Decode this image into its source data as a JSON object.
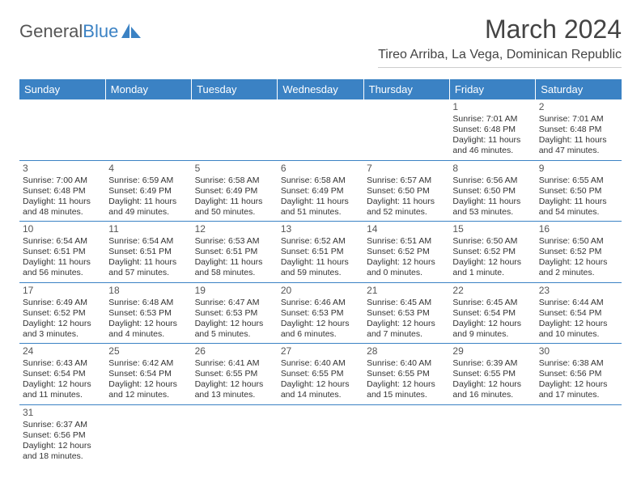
{
  "logo": {
    "text1": "General",
    "text2": "Blue",
    "icon_color": "#3b82c4"
  },
  "title": "March 2024",
  "location": "Tireo Arriba, La Vega, Dominican Republic",
  "header_bg": "#3b82c4",
  "header_fg": "#ffffff",
  "border_color": "#3b82c4",
  "day_headers": [
    "Sunday",
    "Monday",
    "Tuesday",
    "Wednesday",
    "Thursday",
    "Friday",
    "Saturday"
  ],
  "weeks": [
    [
      null,
      null,
      null,
      null,
      null,
      {
        "n": "1",
        "sr": "7:01 AM",
        "ss": "6:48 PM",
        "dl": "11 hours and 46 minutes."
      },
      {
        "n": "2",
        "sr": "7:01 AM",
        "ss": "6:48 PM",
        "dl": "11 hours and 47 minutes."
      }
    ],
    [
      {
        "n": "3",
        "sr": "7:00 AM",
        "ss": "6:48 PM",
        "dl": "11 hours and 48 minutes."
      },
      {
        "n": "4",
        "sr": "6:59 AM",
        "ss": "6:49 PM",
        "dl": "11 hours and 49 minutes."
      },
      {
        "n": "5",
        "sr": "6:58 AM",
        "ss": "6:49 PM",
        "dl": "11 hours and 50 minutes."
      },
      {
        "n": "6",
        "sr": "6:58 AM",
        "ss": "6:49 PM",
        "dl": "11 hours and 51 minutes."
      },
      {
        "n": "7",
        "sr": "6:57 AM",
        "ss": "6:50 PM",
        "dl": "11 hours and 52 minutes."
      },
      {
        "n": "8",
        "sr": "6:56 AM",
        "ss": "6:50 PM",
        "dl": "11 hours and 53 minutes."
      },
      {
        "n": "9",
        "sr": "6:55 AM",
        "ss": "6:50 PM",
        "dl": "11 hours and 54 minutes."
      }
    ],
    [
      {
        "n": "10",
        "sr": "6:54 AM",
        "ss": "6:51 PM",
        "dl": "11 hours and 56 minutes."
      },
      {
        "n": "11",
        "sr": "6:54 AM",
        "ss": "6:51 PM",
        "dl": "11 hours and 57 minutes."
      },
      {
        "n": "12",
        "sr": "6:53 AM",
        "ss": "6:51 PM",
        "dl": "11 hours and 58 minutes."
      },
      {
        "n": "13",
        "sr": "6:52 AM",
        "ss": "6:51 PM",
        "dl": "11 hours and 59 minutes."
      },
      {
        "n": "14",
        "sr": "6:51 AM",
        "ss": "6:52 PM",
        "dl": "12 hours and 0 minutes."
      },
      {
        "n": "15",
        "sr": "6:50 AM",
        "ss": "6:52 PM",
        "dl": "12 hours and 1 minute."
      },
      {
        "n": "16",
        "sr": "6:50 AM",
        "ss": "6:52 PM",
        "dl": "12 hours and 2 minutes."
      }
    ],
    [
      {
        "n": "17",
        "sr": "6:49 AM",
        "ss": "6:52 PM",
        "dl": "12 hours and 3 minutes."
      },
      {
        "n": "18",
        "sr": "6:48 AM",
        "ss": "6:53 PM",
        "dl": "12 hours and 4 minutes."
      },
      {
        "n": "19",
        "sr": "6:47 AM",
        "ss": "6:53 PM",
        "dl": "12 hours and 5 minutes."
      },
      {
        "n": "20",
        "sr": "6:46 AM",
        "ss": "6:53 PM",
        "dl": "12 hours and 6 minutes."
      },
      {
        "n": "21",
        "sr": "6:45 AM",
        "ss": "6:53 PM",
        "dl": "12 hours and 7 minutes."
      },
      {
        "n": "22",
        "sr": "6:45 AM",
        "ss": "6:54 PM",
        "dl": "12 hours and 9 minutes."
      },
      {
        "n": "23",
        "sr": "6:44 AM",
        "ss": "6:54 PM",
        "dl": "12 hours and 10 minutes."
      }
    ],
    [
      {
        "n": "24",
        "sr": "6:43 AM",
        "ss": "6:54 PM",
        "dl": "12 hours and 11 minutes."
      },
      {
        "n": "25",
        "sr": "6:42 AM",
        "ss": "6:54 PM",
        "dl": "12 hours and 12 minutes."
      },
      {
        "n": "26",
        "sr": "6:41 AM",
        "ss": "6:55 PM",
        "dl": "12 hours and 13 minutes."
      },
      {
        "n": "27",
        "sr": "6:40 AM",
        "ss": "6:55 PM",
        "dl": "12 hours and 14 minutes."
      },
      {
        "n": "28",
        "sr": "6:40 AM",
        "ss": "6:55 PM",
        "dl": "12 hours and 15 minutes."
      },
      {
        "n": "29",
        "sr": "6:39 AM",
        "ss": "6:55 PM",
        "dl": "12 hours and 16 minutes."
      },
      {
        "n": "30",
        "sr": "6:38 AM",
        "ss": "6:56 PM",
        "dl": "12 hours and 17 minutes."
      }
    ],
    [
      {
        "n": "31",
        "sr": "6:37 AM",
        "ss": "6:56 PM",
        "dl": "12 hours and 18 minutes."
      },
      null,
      null,
      null,
      null,
      null,
      null
    ]
  ],
  "labels": {
    "sunrise": "Sunrise:",
    "sunset": "Sunset:",
    "daylight": "Daylight:"
  }
}
